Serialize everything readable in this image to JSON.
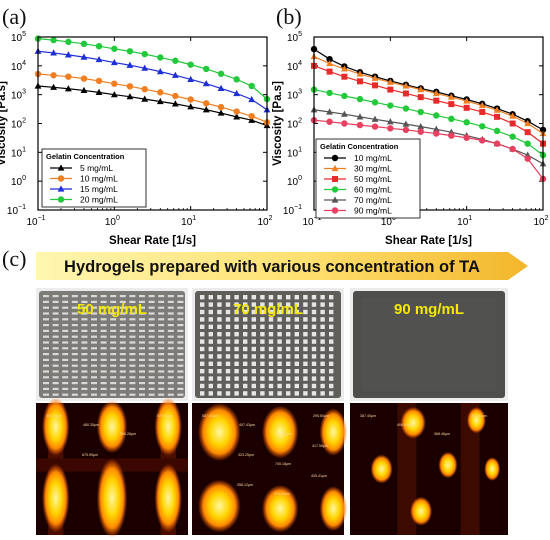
{
  "figure": {
    "labels": [
      "(a)",
      "(b)",
      "(c)"
    ],
    "banner": "Hydrogels prepared with various concentration of TA",
    "photos": [
      {
        "label": "50 mg/mL",
        "bg": "#7d7b78",
        "pore_shape": "dash",
        "pore_color": "#d9d9d9"
      },
      {
        "label": "70 mg/mL",
        "bg": "#5f5e5b",
        "pore_shape": "square",
        "pore_color": "#e6e6e6"
      },
      {
        "label": "90 mg/mL",
        "bg": "#4e4e4c",
        "pore_shape": "none",
        "pore_color": "#5a5a58"
      }
    ],
    "micrographs": [
      {
        "name": "micro-50",
        "spots": [
          [
            0.13,
            0.18,
            0.09,
            0.22
          ],
          [
            0.87,
            0.18,
            0.09,
            0.22
          ],
          [
            0.13,
            0.72,
            0.09,
            0.26
          ],
          [
            0.5,
            0.72,
            0.1,
            0.3
          ],
          [
            0.87,
            0.72,
            0.09,
            0.26
          ],
          [
            0.5,
            0.18,
            0.1,
            0.2
          ]
        ],
        "annotations": [
          "480.35μm",
          "480.35μm",
          "508.28μm",
          "578.08μm",
          "675.95μm"
        ]
      },
      {
        "name": "micro-70",
        "spots": [
          [
            0.18,
            0.22,
            0.14,
            0.22
          ],
          [
            0.58,
            0.22,
            0.12,
            0.2
          ],
          [
            0.93,
            0.22,
            0.09,
            0.18
          ],
          [
            0.18,
            0.78,
            0.14,
            0.2
          ],
          [
            0.58,
            0.8,
            0.12,
            0.18
          ],
          [
            0.93,
            0.8,
            0.09,
            0.17
          ]
        ],
        "annotations": [
          "587.80μm",
          "407.43μm",
          "374.64μm",
          "295.60μm",
          "323.25μm",
          "745.18μm",
          "417.56μm",
          "358.12μm",
          "374.84μm",
          "405.41μm"
        ]
      },
      {
        "name": "micro-90",
        "spots": [
          [
            0.4,
            0.15,
            0.08,
            0.12
          ],
          [
            0.8,
            0.13,
            0.06,
            0.1
          ],
          [
            0.2,
            0.5,
            0.07,
            0.11
          ],
          [
            0.62,
            0.47,
            0.06,
            0.1
          ],
          [
            0.9,
            0.5,
            0.05,
            0.09
          ],
          [
            0.45,
            0.82,
            0.07,
            0.11
          ]
        ],
        "annotations": [
          "387.40μm",
          "406.85μm",
          "368.46μm",
          "362.81μm"
        ]
      }
    ]
  },
  "chart_data": [
    {
      "type": "line",
      "panel": "(a)",
      "xlabel": "Shear Rate [1/s]",
      "ylabel": "Viscosity [Pa.s]",
      "xscale": "log",
      "yscale": "log",
      "xlim": [
        0.1,
        100
      ],
      "ylim": [
        0.1,
        100000
      ],
      "xticks": [
        {
          "v": 0.1,
          "label": "10",
          "exp": "−1"
        },
        {
          "v": 1,
          "label": "10",
          "exp": "0"
        },
        {
          "v": 10,
          "label": "10",
          "exp": "1"
        },
        {
          "v": 100,
          "label": "10",
          "exp": "2"
        }
      ],
      "yticks": [
        {
          "v": 0.1,
          "label": "10",
          "exp": "−1"
        },
        {
          "v": 1,
          "label": "10",
          "exp": "0"
        },
        {
          "v": 10,
          "label": "10",
          "exp": "1"
        },
        {
          "v": 100,
          "label": "10",
          "exp": "2"
        },
        {
          "v": 1000,
          "label": "10",
          "exp": "3"
        },
        {
          "v": 10000,
          "label": "10",
          "exp": "4"
        },
        {
          "v": 100000,
          "label": "10",
          "exp": "5"
        }
      ],
      "legend_title": "Gelatin Concentration",
      "legend_position": "bottom-left",
      "series": [
        {
          "name": "5 mg/mL",
          "color": "#000000",
          "marker": "triangle",
          "x": [
            0.1,
            0.16,
            0.25,
            0.4,
            0.63,
            1,
            1.6,
            2.5,
            4,
            6.3,
            10,
            16,
            25,
            40,
            63,
            100
          ],
          "y": [
            2000,
            1800,
            1600,
            1400,
            1200,
            1000,
            850,
            700,
            580,
            480,
            380,
            300,
            230,
            170,
            130,
            85
          ]
        },
        {
          "name": "10 mg/mL",
          "color": "#f07f22",
          "marker": "circle",
          "x": [
            0.1,
            0.16,
            0.25,
            0.4,
            0.63,
            1,
            1.6,
            2.5,
            4,
            6.3,
            10,
            16,
            25,
            40,
            63,
            100
          ],
          "y": [
            5200,
            4700,
            4200,
            3600,
            3000,
            2400,
            1950,
            1550,
            1200,
            900,
            680,
            500,
            370,
            260,
            180,
            110
          ]
        },
        {
          "name": "15 mg/mL",
          "color": "#1f2fd6",
          "marker": "triangle",
          "x": [
            0.1,
            0.16,
            0.25,
            0.4,
            0.63,
            1,
            1.6,
            2.5,
            4,
            6.3,
            10,
            16,
            25,
            40,
            63,
            100
          ],
          "y": [
            32000,
            28000,
            24000,
            20000,
            16500,
            13000,
            10500,
            8300,
            6300,
            4700,
            3400,
            2400,
            1650,
            1100,
            680,
            300
          ]
        },
        {
          "name": "20 mg/mL",
          "color": "#22c93a",
          "marker": "circle",
          "x": [
            0.1,
            0.16,
            0.25,
            0.4,
            0.63,
            1,
            1.6,
            2.5,
            4,
            6.3,
            10,
            16,
            25,
            40,
            63,
            100
          ],
          "y": [
            88000,
            78000,
            68000,
            58000,
            48000,
            39000,
            32000,
            25500,
            19500,
            15000,
            11000,
            7800,
            5300,
            3400,
            2000,
            700
          ]
        }
      ]
    },
    {
      "type": "line",
      "panel": "(b)",
      "xlabel": "Shear Rate [1/s]",
      "ylabel": "Viscosity [Pa.s]",
      "xscale": "log",
      "yscale": "log",
      "xlim": [
        0.1,
        100
      ],
      "ylim": [
        0.1,
        100000
      ],
      "xticks": [
        {
          "v": 0.1,
          "label": "10",
          "exp": "−1"
        },
        {
          "v": 1,
          "label": "10",
          "exp": "0"
        },
        {
          "v": 10,
          "label": "10",
          "exp": "1"
        },
        {
          "v": 100,
          "label": "10",
          "exp": "2"
        }
      ],
      "yticks": [
        {
          "v": 0.1,
          "label": "10",
          "exp": "−1"
        },
        {
          "v": 1,
          "label": "10",
          "exp": "0"
        },
        {
          "v": 10,
          "label": "10",
          "exp": "1"
        },
        {
          "v": 100,
          "label": "10",
          "exp": "2"
        },
        {
          "v": 1000,
          "label": "10",
          "exp": "3"
        },
        {
          "v": 10000,
          "label": "10",
          "exp": "4"
        },
        {
          "v": 100000,
          "label": "10",
          "exp": "5"
        }
      ],
      "legend_title": "Gelatin Concentration",
      "legend_position": "bottom-left",
      "series": [
        {
          "name": "10 mg/mL",
          "color": "#000000",
          "marker": "circle",
          "x": [
            0.1,
            0.16,
            0.25,
            0.4,
            0.63,
            1,
            1.6,
            2.5,
            4,
            6.3,
            10,
            16,
            25,
            40,
            63,
            100
          ],
          "y": [
            38000,
            17000,
            9500,
            6000,
            4200,
            3000,
            2200,
            1650,
            1250,
            920,
            680,
            480,
            330,
            210,
            120,
            60
          ]
        },
        {
          "name": "30 mg/mL",
          "color": "#f07f22",
          "marker": "triangle",
          "x": [
            0.1,
            0.16,
            0.25,
            0.4,
            0.63,
            1,
            1.6,
            2.5,
            4,
            6.3,
            10,
            16,
            25,
            40,
            63,
            100
          ],
          "y": [
            21000,
            12000,
            7800,
            5200,
            3700,
            2700,
            2000,
            1500,
            1100,
            820,
            600,
            420,
            290,
            180,
            100,
            45
          ]
        },
        {
          "name": "50 mg/mL",
          "color": "#e82a2a",
          "marker": "square",
          "x": [
            0.1,
            0.16,
            0.25,
            0.4,
            0.63,
            1,
            1.6,
            2.5,
            4,
            6.3,
            10,
            16,
            25,
            40,
            63,
            100
          ],
          "y": [
            10000,
            6300,
            4200,
            2900,
            2100,
            1500,
            1100,
            820,
            620,
            470,
            350,
            250,
            170,
            100,
            50,
            20
          ]
        },
        {
          "name": "60 mg/mL",
          "color": "#22c93a",
          "marker": "circle",
          "x": [
            0.1,
            0.16,
            0.25,
            0.4,
            0.63,
            1,
            1.6,
            2.5,
            4,
            6.3,
            10,
            16,
            25,
            40,
            63,
            100
          ],
          "y": [
            1500,
            1150,
            900,
            700,
            540,
            420,
            330,
            250,
            190,
            145,
            110,
            80,
            55,
            35,
            20,
            8
          ]
        },
        {
          "name": "70 mg/mL",
          "color": "#555555",
          "marker": "triangle",
          "x": [
            0.1,
            0.16,
            0.25,
            0.4,
            0.63,
            1,
            1.6,
            2.5,
            4,
            6.3,
            10,
            16,
            25,
            40,
            63,
            100
          ],
          "y": [
            300,
            250,
            210,
            170,
            140,
            115,
            95,
            78,
            63,
            50,
            38,
            28,
            20,
            13,
            8,
            4
          ]
        },
        {
          "name": "90 mg/mL",
          "color": "#e84060",
          "marker": "circle",
          "x": [
            0.1,
            0.16,
            0.25,
            0.4,
            0.63,
            1,
            1.6,
            2.5,
            4,
            6.3,
            10,
            16,
            25,
            40,
            63,
            100
          ],
          "y": [
            130,
            115,
            100,
            88,
            78,
            68,
            60,
            52,
            45,
            38,
            32,
            26,
            20,
            13,
            6,
            1.2
          ]
        }
      ]
    }
  ]
}
